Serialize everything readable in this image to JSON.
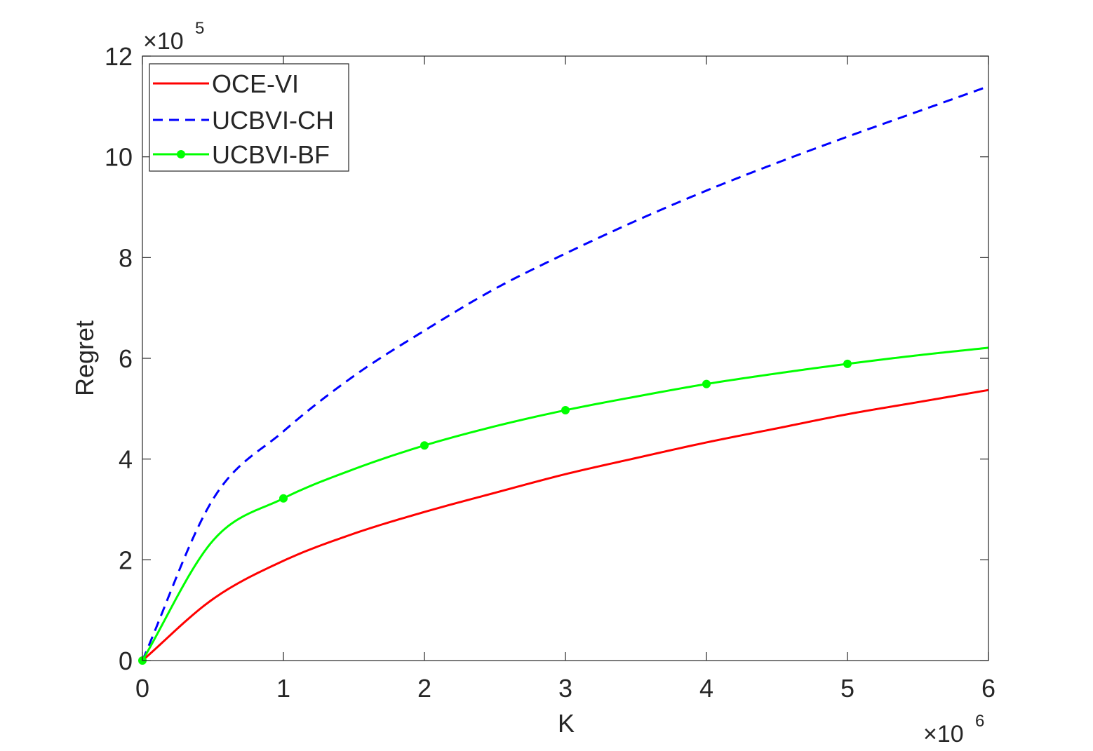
{
  "chart_data": {
    "type": "line",
    "xlabel": "K",
    "ylabel": "Regret",
    "x_exponent": {
      "base": "×10",
      "power": "6"
    },
    "y_exponent": {
      "base": "×10",
      "power": "5"
    },
    "xlim": [
      0,
      6
    ],
    "ylim": [
      0,
      12
    ],
    "x_ticks": [
      "0",
      "1",
      "2",
      "3",
      "4",
      "5",
      "6"
    ],
    "y_ticks": [
      "0",
      "2",
      "4",
      "6",
      "8",
      "10",
      "12"
    ],
    "grid": false,
    "legend_position": "top-left",
    "series": [
      {
        "name": "OCE-VI",
        "color": "#ff0000",
        "style": "solid",
        "markers": false,
        "x": [
          0,
          0.5,
          1,
          1.5,
          2,
          2.5,
          3,
          3.5,
          4,
          4.5,
          5,
          5.5,
          6
        ],
        "y": [
          0,
          1.22,
          1.98,
          2.52,
          2.95,
          3.33,
          3.7,
          4.02,
          4.33,
          4.61,
          4.89,
          5.13,
          5.37
        ]
      },
      {
        "name": "UCBVI-CH",
        "color": "#0000ff",
        "style": "dashed",
        "markers": false,
        "x": [
          0,
          0.5,
          1,
          1.5,
          2,
          2.5,
          3,
          3.5,
          4,
          4.5,
          5,
          5.5,
          6
        ],
        "y": [
          0,
          3.2,
          4.55,
          5.65,
          6.55,
          7.38,
          8.08,
          8.73,
          9.33,
          9.88,
          10.4,
          10.9,
          11.4
        ]
      },
      {
        "name": "UCBVI-BF",
        "color": "#00ff00",
        "style": "solid",
        "markers": true,
        "x": [
          0,
          0.5,
          1,
          1.5,
          2,
          2.5,
          3,
          3.5,
          4,
          4.5,
          5,
          5.5,
          6
        ],
        "y": [
          0,
          2.38,
          3.22,
          3.8,
          4.27,
          4.65,
          4.97,
          5.24,
          5.49,
          5.7,
          5.89,
          6.06,
          6.21
        ],
        "marker_x": [
          0,
          1,
          2,
          3,
          4,
          5
        ]
      }
    ]
  }
}
